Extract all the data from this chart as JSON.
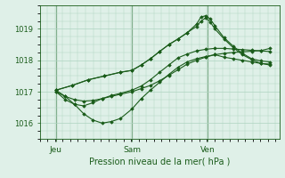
{
  "background_color": "#dff0e8",
  "grid_color": "#aed4c0",
  "line_color": "#1a5c1a",
  "marker_color": "#1a5c1a",
  "xlabel": "Pression niveau de la mer( hPa )",
  "xlabel_color": "#1a5c1a",
  "tick_color": "#1a5c1a",
  "spine_color": "#1a5c1a",
  "ylim": [
    1015.5,
    1019.75
  ],
  "yticks": [
    1016,
    1017,
    1018,
    1019
  ],
  "xtick_labels": [
    "Jeu",
    "Sam",
    "Ven"
  ],
  "xtick_positions": [
    0.07,
    0.4,
    0.73
  ],
  "vline_positions": [
    0.07,
    0.4,
    0.73
  ],
  "series": [
    {
      "x": [
        0.07,
        0.11,
        0.15,
        0.19,
        0.23,
        0.27,
        0.31,
        0.35,
        0.4,
        0.44,
        0.48,
        0.52,
        0.56,
        0.6,
        0.64,
        0.68,
        0.72,
        0.76,
        0.8,
        0.84,
        0.88,
        0.92,
        0.96,
        1.0
      ],
      "y": [
        1017.0,
        1016.85,
        1016.75,
        1016.7,
        1016.72,
        1016.78,
        1016.85,
        1016.92,
        1017.0,
        1017.1,
        1017.2,
        1017.35,
        1017.52,
        1017.7,
        1017.88,
        1018.0,
        1018.1,
        1018.18,
        1018.22,
        1018.25,
        1018.27,
        1018.29,
        1018.31,
        1018.38
      ]
    },
    {
      "x": [
        0.07,
        0.11,
        0.15,
        0.19,
        0.23,
        0.27,
        0.31,
        0.35,
        0.4,
        0.44,
        0.48,
        0.52,
        0.56,
        0.6,
        0.64,
        0.68,
        0.72,
        0.76,
        0.8,
        0.84,
        0.88,
        0.92,
        0.96,
        1.0
      ],
      "y": [
        1017.0,
        1016.75,
        1016.6,
        1016.55,
        1016.65,
        1016.78,
        1016.88,
        1016.95,
        1017.05,
        1017.18,
        1017.38,
        1017.62,
        1017.85,
        1018.08,
        1018.2,
        1018.3,
        1018.35,
        1018.38,
        1018.38,
        1018.36,
        1018.34,
        1018.32,
        1018.3,
        1018.28
      ]
    },
    {
      "x": [
        0.07,
        0.11,
        0.15,
        0.19,
        0.23,
        0.27,
        0.31,
        0.35,
        0.4,
        0.44,
        0.48,
        0.52,
        0.56,
        0.6,
        0.64,
        0.68,
        0.72,
        0.76,
        0.8,
        0.84,
        0.88,
        0.92,
        0.96,
        1.0
      ],
      "y": [
        1017.05,
        1016.85,
        1016.6,
        1016.3,
        1016.1,
        1016.0,
        1016.05,
        1016.15,
        1016.45,
        1016.78,
        1017.05,
        1017.3,
        1017.55,
        1017.78,
        1017.95,
        1018.05,
        1018.12,
        1018.18,
        1018.1,
        1018.05,
        1018.0,
        1017.95,
        1017.9,
        1017.85
      ]
    },
    {
      "x": [
        0.07,
        0.14,
        0.21,
        0.28,
        0.35,
        0.4,
        0.44,
        0.48,
        0.52,
        0.56,
        0.6,
        0.64,
        0.68,
        0.7,
        0.72,
        0.74,
        0.76,
        0.8,
        0.84,
        0.88,
        0.92,
        0.96,
        1.0
      ],
      "y": [
        1017.05,
        1017.2,
        1017.38,
        1017.5,
        1017.62,
        1017.68,
        1017.85,
        1018.05,
        1018.28,
        1018.5,
        1018.68,
        1018.88,
        1019.15,
        1019.38,
        1019.42,
        1019.32,
        1019.1,
        1018.72,
        1018.45,
        1018.22,
        1018.05,
        1017.98,
        1017.95
      ]
    },
    {
      "x": [
        0.07,
        0.14,
        0.21,
        0.28,
        0.35,
        0.4,
        0.44,
        0.48,
        0.52,
        0.56,
        0.6,
        0.64,
        0.68,
        0.7,
        0.72,
        0.74,
        0.76,
        0.8,
        0.84,
        0.88,
        0.92,
        0.96,
        1.0
      ],
      "y": [
        1017.05,
        1017.2,
        1017.38,
        1017.5,
        1017.62,
        1017.68,
        1017.85,
        1018.05,
        1018.28,
        1018.5,
        1018.68,
        1018.88,
        1019.08,
        1019.25,
        1019.35,
        1019.22,
        1019.0,
        1018.68,
        1018.4,
        1018.18,
        1018.02,
        1017.9,
        1017.88
      ]
    }
  ]
}
